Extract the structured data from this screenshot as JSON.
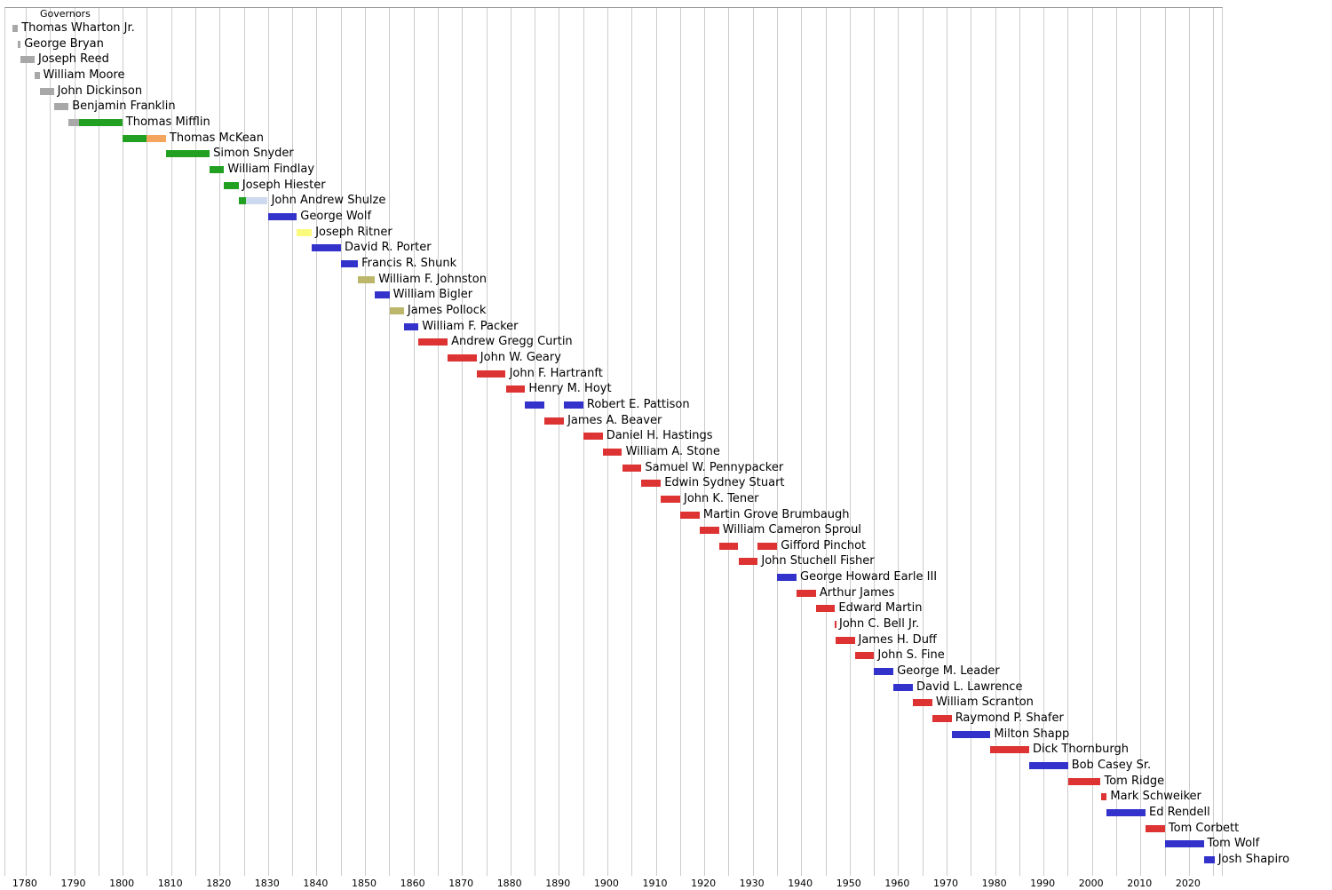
{
  "chart_data": {
    "type": "bar",
    "subtype": "timeline-gantt",
    "title": "Governors",
    "x_range": [
      1775.8,
      2026.8
    ],
    "gridline_interval": 5,
    "tick_years": [
      1780,
      1790,
      1800,
      1810,
      1820,
      1830,
      1840,
      1850,
      1860,
      1870,
      1880,
      1890,
      1900,
      1910,
      1920,
      1930,
      1940,
      1950,
      1960,
      1970,
      1980,
      1990,
      2000,
      2010,
      2020
    ],
    "palette": {
      "gray": "#a8a8a8",
      "green": "#22a022",
      "orange": "#f4a55e",
      "lightblue": "#ccd9ee",
      "blue": "#3333cc",
      "yellow": "#fafa7d",
      "khaki": "#bdb76b",
      "red": "#dd3333"
    },
    "rows": [
      {
        "name": "Thomas Wharton Jr.",
        "segments": [
          {
            "start": 1777.2,
            "end": 1778.4,
            "color": "gray"
          }
        ]
      },
      {
        "name": "George Bryan",
        "segments": [
          {
            "start": 1778.4,
            "end": 1778.95,
            "color": "gray"
          }
        ]
      },
      {
        "name": "Joseph Reed",
        "segments": [
          {
            "start": 1778.95,
            "end": 1781.85,
            "color": "gray"
          }
        ]
      },
      {
        "name": "William Moore",
        "segments": [
          {
            "start": 1781.85,
            "end": 1782.85,
            "color": "gray"
          }
        ]
      },
      {
        "name": "John Dickinson",
        "segments": [
          {
            "start": 1782.85,
            "end": 1785.8,
            "color": "gray"
          }
        ]
      },
      {
        "name": "Benjamin Franklin",
        "segments": [
          {
            "start": 1785.8,
            "end": 1788.85,
            "color": "gray"
          }
        ]
      },
      {
        "name": "Thomas Mifflin",
        "segments": [
          {
            "start": 1788.85,
            "end": 1790.95,
            "color": "gray"
          },
          {
            "start": 1790.95,
            "end": 1799.95,
            "color": "green"
          }
        ]
      },
      {
        "name": "Thomas McKean",
        "segments": [
          {
            "start": 1799.95,
            "end": 1805.0,
            "color": "green"
          },
          {
            "start": 1805.0,
            "end": 1808.95,
            "color": "orange"
          }
        ]
      },
      {
        "name": "Simon Snyder",
        "segments": [
          {
            "start": 1808.95,
            "end": 1817.95,
            "color": "green"
          }
        ]
      },
      {
        "name": "William Findlay",
        "segments": [
          {
            "start": 1817.95,
            "end": 1820.95,
            "color": "green"
          }
        ]
      },
      {
        "name": "Joseph Hiester",
        "segments": [
          {
            "start": 1820.95,
            "end": 1823.95,
            "color": "green"
          }
        ]
      },
      {
        "name": "John Andrew Shulze",
        "segments": [
          {
            "start": 1823.95,
            "end": 1825.4,
            "color": "green"
          },
          {
            "start": 1825.4,
            "end": 1829.95,
            "color": "lightblue"
          }
        ]
      },
      {
        "name": "George Wolf",
        "segments": [
          {
            "start": 1829.95,
            "end": 1835.95,
            "color": "blue"
          }
        ]
      },
      {
        "name": "Joseph Ritner",
        "segments": [
          {
            "start": 1835.95,
            "end": 1839.05,
            "color": "yellow"
          }
        ]
      },
      {
        "name": "David R. Porter",
        "segments": [
          {
            "start": 1839.05,
            "end": 1845.05,
            "color": "blue"
          }
        ]
      },
      {
        "name": "Francis R. Shunk",
        "segments": [
          {
            "start": 1845.05,
            "end": 1848.55,
            "color": "blue"
          }
        ]
      },
      {
        "name": "William F. Johnston",
        "segments": [
          {
            "start": 1848.55,
            "end": 1852.05,
            "color": "khaki"
          }
        ]
      },
      {
        "name": "William Bigler",
        "segments": [
          {
            "start": 1852.05,
            "end": 1855.05,
            "color": "blue"
          }
        ]
      },
      {
        "name": "James Pollock",
        "segments": [
          {
            "start": 1855.05,
            "end": 1858.05,
            "color": "khaki"
          }
        ]
      },
      {
        "name": "William F. Packer",
        "segments": [
          {
            "start": 1858.05,
            "end": 1861.05,
            "color": "blue"
          }
        ]
      },
      {
        "name": "Andrew Gregg Curtin",
        "segments": [
          {
            "start": 1861.05,
            "end": 1867.05,
            "color": "red"
          }
        ]
      },
      {
        "name": "John W. Geary",
        "segments": [
          {
            "start": 1867.05,
            "end": 1873.05,
            "color": "red"
          }
        ]
      },
      {
        "name": "John F. Hartranft",
        "segments": [
          {
            "start": 1873.05,
            "end": 1879.05,
            "color": "red"
          }
        ]
      },
      {
        "name": "Henry M. Hoyt",
        "segments": [
          {
            "start": 1879.05,
            "end": 1883.05,
            "color": "red"
          }
        ]
      },
      {
        "name": "Robert E. Pattison",
        "segments": [
          {
            "start": 1883.05,
            "end": 1887.05,
            "color": "blue"
          },
          {
            "start": 1891.05,
            "end": 1895.05,
            "color": "blue"
          }
        ]
      },
      {
        "name": "James A. Beaver",
        "segments": [
          {
            "start": 1887.05,
            "end": 1891.05,
            "color": "red"
          }
        ]
      },
      {
        "name": "Daniel H. Hastings",
        "segments": [
          {
            "start": 1895.05,
            "end": 1899.05,
            "color": "red"
          }
        ]
      },
      {
        "name": "William A. Stone",
        "segments": [
          {
            "start": 1899.05,
            "end": 1903.05,
            "color": "red"
          }
        ]
      },
      {
        "name": "Samuel W. Pennypacker",
        "segments": [
          {
            "start": 1903.05,
            "end": 1907.05,
            "color": "red"
          }
        ]
      },
      {
        "name": "Edwin Sydney Stuart",
        "segments": [
          {
            "start": 1907.05,
            "end": 1911.05,
            "color": "red"
          }
        ]
      },
      {
        "name": "John K. Tener",
        "segments": [
          {
            "start": 1911.05,
            "end": 1915.05,
            "color": "red"
          }
        ]
      },
      {
        "name": "Martin Grove Brumbaugh",
        "segments": [
          {
            "start": 1915.05,
            "end": 1919.05,
            "color": "red"
          }
        ]
      },
      {
        "name": "William Cameron Sproul",
        "segments": [
          {
            "start": 1919.05,
            "end": 1923.05,
            "color": "red"
          }
        ]
      },
      {
        "name": "Gifford Pinchot",
        "segments": [
          {
            "start": 1923.05,
            "end": 1927.05,
            "color": "red"
          },
          {
            "start": 1931.05,
            "end": 1935.05,
            "color": "red"
          }
        ]
      },
      {
        "name": "John Stuchell Fisher",
        "segments": [
          {
            "start": 1927.05,
            "end": 1931.05,
            "color": "red"
          }
        ]
      },
      {
        "name": "George Howard Earle III",
        "segments": [
          {
            "start": 1935.05,
            "end": 1939.05,
            "color": "blue"
          }
        ]
      },
      {
        "name": "Arthur James",
        "segments": [
          {
            "start": 1939.05,
            "end": 1943.05,
            "color": "red"
          }
        ]
      },
      {
        "name": "Edward Martin",
        "segments": [
          {
            "start": 1943.05,
            "end": 1947.0,
            "color": "red"
          }
        ]
      },
      {
        "name": "John C. Bell Jr.",
        "segments": [
          {
            "start": 1947.0,
            "end": 1947.1,
            "color": "red"
          }
        ]
      },
      {
        "name": "James H. Duff",
        "segments": [
          {
            "start": 1947.1,
            "end": 1951.05,
            "color": "red"
          }
        ]
      },
      {
        "name": "John S. Fine",
        "segments": [
          {
            "start": 1951.05,
            "end": 1955.05,
            "color": "red"
          }
        ]
      },
      {
        "name": "George M. Leader",
        "segments": [
          {
            "start": 1955.05,
            "end": 1959.05,
            "color": "blue"
          }
        ]
      },
      {
        "name": "David L. Lawrence",
        "segments": [
          {
            "start": 1959.05,
            "end": 1963.05,
            "color": "blue"
          }
        ]
      },
      {
        "name": "William Scranton",
        "segments": [
          {
            "start": 1963.05,
            "end": 1967.05,
            "color": "red"
          }
        ]
      },
      {
        "name": "Raymond P. Shafer",
        "segments": [
          {
            "start": 1967.05,
            "end": 1971.05,
            "color": "red"
          }
        ]
      },
      {
        "name": "Milton Shapp",
        "segments": [
          {
            "start": 1971.05,
            "end": 1979.05,
            "color": "blue"
          }
        ]
      },
      {
        "name": "Dick Thornburgh",
        "segments": [
          {
            "start": 1979.05,
            "end": 1987.05,
            "color": "red"
          }
        ]
      },
      {
        "name": "Bob Casey Sr.",
        "segments": [
          {
            "start": 1987.05,
            "end": 1995.05,
            "color": "blue"
          }
        ]
      },
      {
        "name": "Tom Ridge",
        "segments": [
          {
            "start": 1995.05,
            "end": 2001.8,
            "color": "red"
          }
        ]
      },
      {
        "name": "Mark Schweiker",
        "segments": [
          {
            "start": 2001.8,
            "end": 2003.05,
            "color": "red"
          }
        ]
      },
      {
        "name": "Ed Rendell",
        "segments": [
          {
            "start": 2003.05,
            "end": 2011.05,
            "color": "blue"
          }
        ]
      },
      {
        "name": "Tom Corbett",
        "segments": [
          {
            "start": 2011.05,
            "end": 2015.05,
            "color": "red"
          }
        ]
      },
      {
        "name": "Tom Wolf",
        "segments": [
          {
            "start": 2015.05,
            "end": 2023.05,
            "color": "blue"
          }
        ]
      },
      {
        "name": "Josh Shapiro",
        "segments": [
          {
            "start": 2023.05,
            "end": 2025.3,
            "color": "blue"
          }
        ]
      }
    ]
  }
}
